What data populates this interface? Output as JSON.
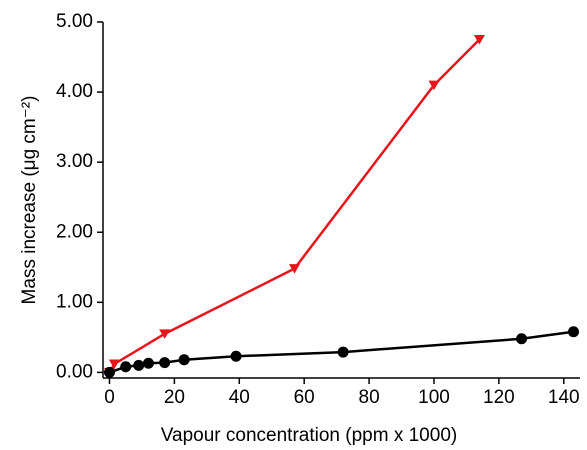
{
  "chart_data": {
    "type": "line",
    "x_label": "Vapour concentration (ppm x 1000)",
    "y_label": "Mass increase (μg cm⁻²)",
    "xlim": [
      -2,
      145
    ],
    "ylim": [
      -0.08,
      5.0
    ],
    "xticks": [
      0,
      20,
      40,
      60,
      80,
      100,
      120,
      140
    ],
    "yticks": [
      {
        "value": 0,
        "label": "0.00"
      },
      {
        "value": 1,
        "label": "1.00"
      },
      {
        "value": 2,
        "label": "2.00"
      },
      {
        "value": 3,
        "label": "3.00"
      },
      {
        "value": 4,
        "label": "4.00"
      },
      {
        "value": 5,
        "label": "5.00"
      }
    ],
    "series": [
      {
        "color": "#e8141b",
        "marker": "triangle-down",
        "x": [
          0,
          1.5,
          17,
          57,
          100,
          114
        ],
        "values": [
          0,
          0.12,
          0.55,
          1.48,
          4.1,
          4.75
        ]
      },
      {
        "color": "#000000",
        "marker": "circle",
        "x": [
          0,
          5,
          9,
          12,
          17,
          23,
          39,
          72,
          127,
          143
        ],
        "values": [
          0,
          0.08,
          0.1,
          0.13,
          0.14,
          0.18,
          0.23,
          0.29,
          0.48,
          0.58
        ]
      }
    ]
  }
}
